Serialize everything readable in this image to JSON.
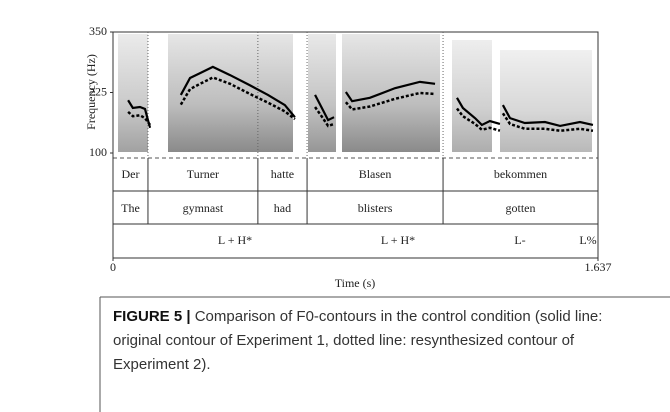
{
  "chart_data": {
    "type": "line",
    "ylabel": "Frequency (Hz)",
    "xlabel": "Time (s)",
    "xlim": [
      0,
      1.637
    ],
    "xticks": [
      0,
      1.637
    ],
    "ylim": [
      100,
      350
    ],
    "yticks": [
      100,
      225,
      350
    ],
    "boundaries": [
      0.118,
      0.489,
      0.655,
      1.114
    ],
    "words": [
      "Der",
      "Turner",
      "hatte",
      "Blasen",
      "bekommen"
    ],
    "glosses": [
      "The",
      "gymnast",
      "had",
      "blisters",
      "gotten"
    ],
    "tones": [
      "L + H*",
      "L + H*",
      "L-",
      "L%"
    ],
    "series": [
      {
        "style": "solid",
        "color": "#000000",
        "x": [
          0.051,
          0.067,
          0.091,
          0.108,
          0.125,
          null,
          0.229,
          0.26,
          0.294,
          0.337,
          0.395,
          0.462,
          0.523,
          0.58,
          0.614,
          null,
          0.682,
          0.705,
          0.726,
          0.746,
          null,
          0.786,
          0.807,
          0.867,
          0.952,
          1.036,
          1.087,
          null,
          1.161,
          1.181,
          1.222,
          1.245,
          1.272,
          1.306,
          null,
          1.316,
          1.34,
          1.39,
          1.458,
          1.509,
          1.576,
          1.62
        ],
        "values": [
          209,
          193,
          195,
          191,
          152,
          null,
          220,
          255,
          265,
          278,
          261,
          240,
          220,
          199,
          174,
          null,
          220,
          193,
          168,
          174,
          null,
          226,
          207,
          214,
          234,
          247,
          243,
          null,
          214,
          193,
          172,
          158,
          166,
          160,
          null,
          199,
          172,
          162,
          164,
          156,
          164,
          158
        ]
      },
      {
        "style": "dotted",
        "color": "#000000",
        "x": [
          0.051,
          0.067,
          0.091,
          0.108,
          0.125,
          null,
          0.229,
          0.26,
          0.294,
          0.337,
          0.395,
          0.462,
          0.523,
          0.58,
          0.614,
          null,
          0.682,
          0.705,
          0.726,
          0.746,
          null,
          0.786,
          0.807,
          0.867,
          0.952,
          1.036,
          1.087,
          null,
          1.161,
          1.181,
          1.222,
          1.245,
          1.272,
          1.306,
          null,
          1.316,
          1.34,
          1.39,
          1.458,
          1.509,
          1.576,
          1.62
        ],
        "values": [
          185,
          176,
          178,
          172,
          158,
          null,
          200,
          232,
          243,
          256,
          243,
          222,
          204,
          186,
          170,
          null,
          195,
          175,
          156,
          160,
          null,
          205,
          190,
          196,
          212,
          224,
          222,
          null,
          192,
          176,
          160,
          148,
          152,
          146,
          null,
          182,
          160,
          150,
          150,
          146,
          150,
          146
        ]
      }
    ]
  },
  "caption": {
    "label": "FIGURE 5 |",
    "text": "Comparison of F0-contours in the control condition (solid line: original contour of Experiment 1, dotted line: resynthesized contour of Experiment 2)."
  }
}
